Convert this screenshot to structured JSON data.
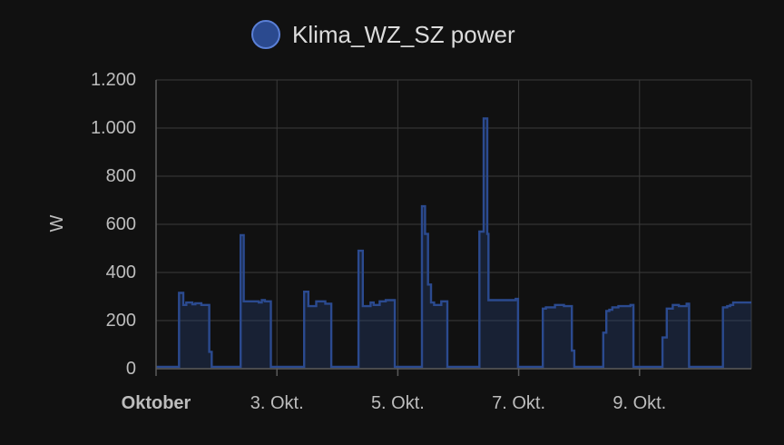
{
  "chart_data": {
    "type": "line",
    "legend": {
      "label": "Klima_WZ_SZ power",
      "color": "#2b4a8f",
      "position": "top-center"
    },
    "ylabel": "W",
    "ylim": [
      0,
      1200
    ],
    "yticks": [
      0,
      200,
      400,
      600,
      800,
      1000,
      1200
    ],
    "ytick_labels": [
      "0",
      "200",
      "400",
      "600",
      "800",
      "1.000",
      "1.200"
    ],
    "xlim": [
      0,
      9.85
    ],
    "xticks": [
      0,
      2,
      4,
      6,
      8
    ],
    "xtick_labels": [
      "Oktober",
      "3. Okt.",
      "5. Okt.",
      "7. Okt.",
      "9. Okt."
    ],
    "grid": true,
    "series": [
      {
        "name": "Klima_WZ_SZ power",
        "color": "#2b4a8f",
        "step": true,
        "fill": true,
        "x": [
          0,
          0.38,
          0.38,
          0.45,
          0.45,
          0.5,
          0.5,
          0.6,
          0.6,
          0.65,
          0.65,
          0.75,
          0.75,
          0.88,
          0.88,
          0.92,
          0.92,
          1.4,
          1.4,
          1.45,
          1.45,
          1.7,
          1.7,
          1.75,
          1.75,
          1.8,
          1.8,
          1.9,
          1.9,
          2.45,
          2.45,
          2.52,
          2.52,
          2.65,
          2.65,
          2.8,
          2.8,
          2.9,
          2.9,
          3.35,
          3.35,
          3.42,
          3.42,
          3.55,
          3.55,
          3.6,
          3.6,
          3.7,
          3.7,
          3.8,
          3.8,
          3.95,
          3.95,
          4.4,
          4.4,
          4.45,
          4.45,
          4.5,
          4.5,
          4.55,
          4.55,
          4.6,
          4.6,
          4.72,
          4.72,
          4.82,
          4.82,
          5.35,
          5.35,
          5.42,
          5.42,
          5.48,
          5.48,
          5.5,
          5.5,
          5.95,
          5.95,
          5.99,
          5.99,
          6.4,
          6.4,
          6.45,
          6.45,
          6.6,
          6.6,
          6.75,
          6.75,
          6.88,
          6.88,
          6.92,
          6.92,
          7.4,
          7.4,
          7.45,
          7.45,
          7.5,
          7.5,
          7.55,
          7.55,
          7.65,
          7.65,
          7.85,
          7.85,
          7.9,
          7.9,
          8.38,
          8.38,
          8.45,
          8.45,
          8.55,
          8.55,
          8.65,
          8.65,
          8.78,
          8.78,
          8.82,
          8.82,
          9.38,
          9.38,
          9.45,
          9.45,
          9.5,
          9.5,
          9.55,
          9.55,
          9.85
        ],
        "y": [
          8,
          8,
          315,
          315,
          265,
          265,
          275,
          275,
          268,
          268,
          272,
          272,
          265,
          265,
          70,
          70,
          8,
          8,
          555,
          555,
          280,
          280,
          275,
          275,
          285,
          285,
          280,
          280,
          8,
          8,
          320,
          320,
          260,
          260,
          280,
          280,
          270,
          270,
          8,
          8,
          490,
          490,
          260,
          260,
          275,
          275,
          265,
          265,
          280,
          280,
          285,
          285,
          8,
          8,
          675,
          675,
          560,
          560,
          350,
          350,
          275,
          275,
          265,
          265,
          280,
          280,
          8,
          8,
          570,
          570,
          1040,
          1040,
          560,
          560,
          285,
          285,
          290,
          290,
          8,
          8,
          250,
          250,
          255,
          255,
          265,
          265,
          260,
          260,
          75,
          75,
          8,
          8,
          150,
          150,
          240,
          240,
          245,
          245,
          255,
          255,
          260,
          260,
          265,
          265,
          8,
          8,
          130,
          130,
          250,
          250,
          265,
          265,
          260,
          260,
          270,
          270,
          8,
          8,
          255,
          255,
          260,
          260,
          265,
          265,
          275,
          275
        ]
      }
    ]
  }
}
